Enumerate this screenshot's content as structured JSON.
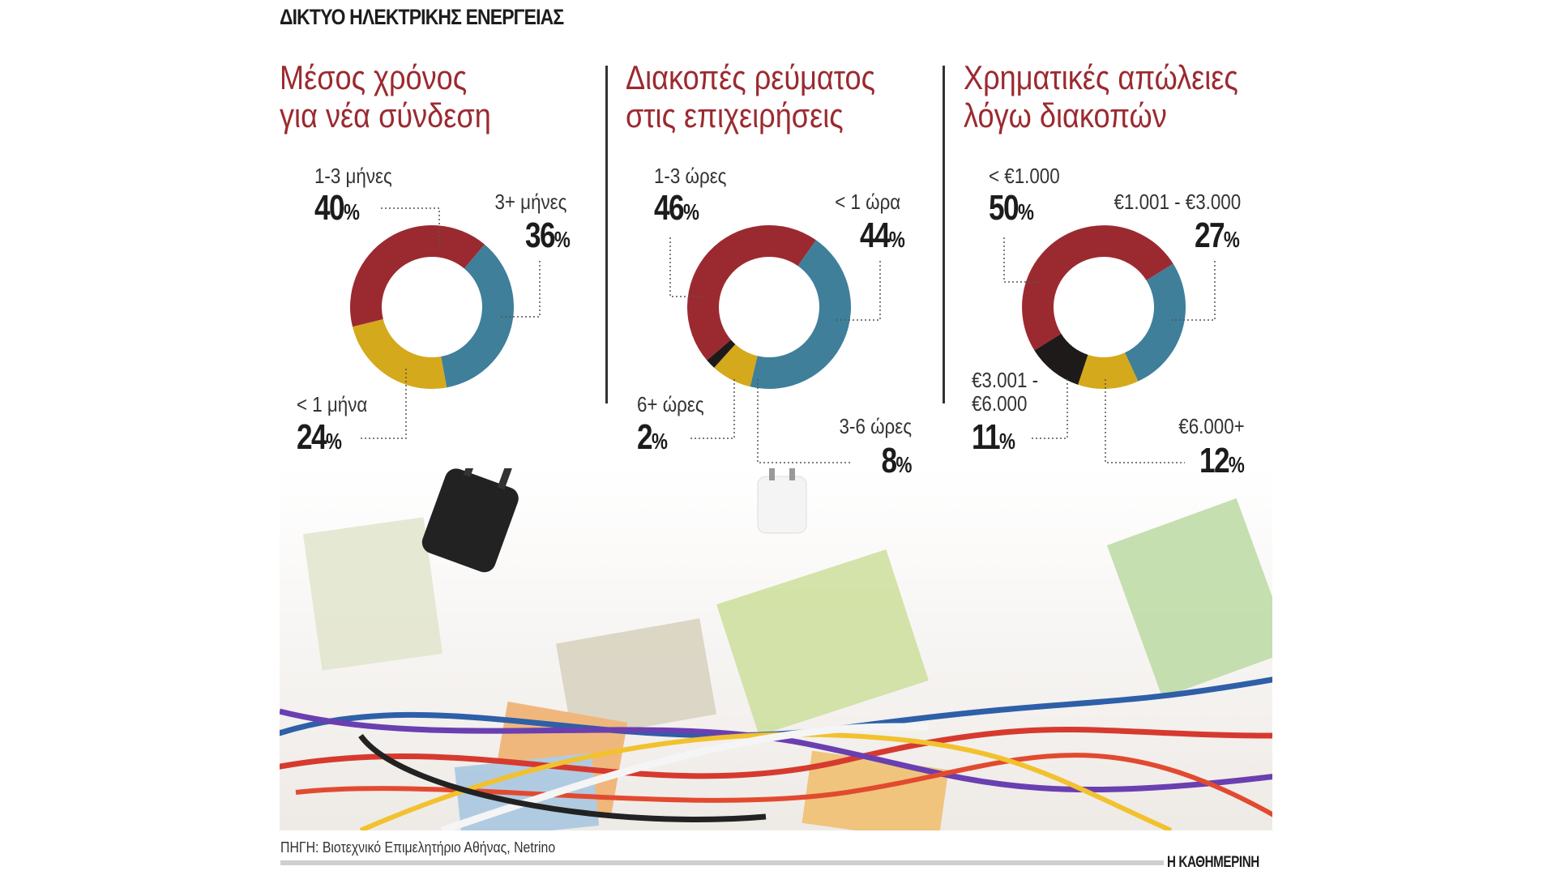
{
  "header": {
    "title": "ΔΙΚΤΥΟ ΗΛΕΚΤΡΙΚΗΣ ΕΝΕΡΓΕΙΑΣ"
  },
  "colors": {
    "accent": "#9b2a30",
    "red": "#9b2a30",
    "blue": "#3f7f9a",
    "yellow": "#d4a91c",
    "black": "#1f1a1a"
  },
  "chart_data": [
    {
      "type": "pie",
      "title_line1": "Μέσος χρόνος",
      "title_line2": "για νέα σύνδεση",
      "categories": [
        "1-3 μήνες",
        "3+ μήνες",
        "< 1 μήνα"
      ],
      "values": [
        40,
        36,
        24
      ],
      "value_labels": [
        "40",
        "36",
        "24"
      ],
      "unit": "%",
      "colors": [
        "#9b2a30",
        "#3f7f9a",
        "#d4a91c"
      ]
    },
    {
      "type": "pie",
      "title_line1": "Διακοπές ρεύματος",
      "title_line2": "στις επιχειρήσεις",
      "categories": [
        "1-3 ώρες",
        "< 1 ώρα",
        "3-6 ώρες",
        "6+ ώρες"
      ],
      "values": [
        46,
        44,
        8,
        2
      ],
      "value_labels": [
        "46",
        "44",
        "8",
        "2"
      ],
      "unit": "%",
      "colors": [
        "#9b2a30",
        "#3f7f9a",
        "#d4a91c",
        "#1f1a1a"
      ]
    },
    {
      "type": "pie",
      "title_line1": "Χρηματικές απώλειες",
      "title_line2": "λόγω διακοπών",
      "categories": [
        "< €1.000",
        "€1.001 - €3.000",
        "€6.000+",
        "€3.001 - €6.000"
      ],
      "category_lines": {
        "3": [
          "€3.001 -",
          "€6.000"
        ]
      },
      "values": [
        50,
        27,
        12,
        11
      ],
      "value_labels": [
        "50",
        "27",
        "12",
        "11"
      ],
      "unit": "%",
      "colors": [
        "#9b2a30",
        "#3f7f9a",
        "#d4a91c",
        "#1f1a1a"
      ]
    }
  ],
  "footer": {
    "source": "ΠΗΓΗ: Βιοτεχνικό Επιμελητήριο Αθήνας, Netrino",
    "brand": "Η ΚΑΘΗΜΕΡΙΝΗ"
  }
}
